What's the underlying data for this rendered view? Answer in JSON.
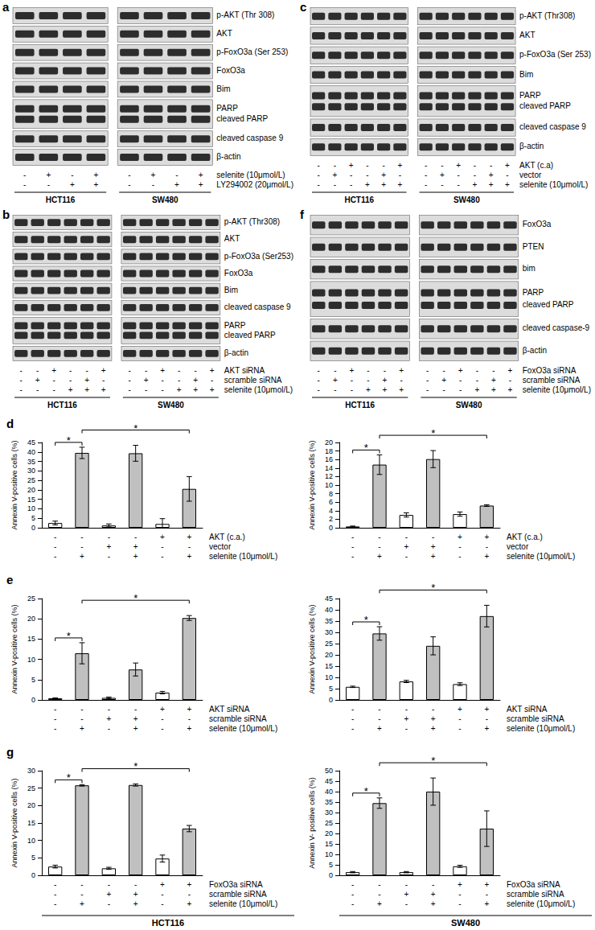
{
  "blots": [
    {
      "letter": "a",
      "cell_lines": [
        "HCT116",
        "SW480"
      ],
      "rows": [
        {
          "label": "p-AKT (Thr 308)"
        },
        {
          "label": "AKT"
        },
        {
          "label": "p-FoxO3a (Ser 253)"
        },
        {
          "label": "FoxO3a"
        },
        {
          "label": "Bim"
        },
        {
          "label": "PARP",
          "label2": "cleaved PARP"
        },
        {
          "label": "cleaved caspase 9"
        },
        {
          "label": "β-actin"
        }
      ],
      "treatments": [
        {
          "label": "selenite (10μmol/L)",
          "signs": [
            "-",
            "+",
            "-",
            "+"
          ]
        },
        {
          "label": "LY294002 (20μmol/L)",
          "signs": [
            "-",
            "-",
            "+",
            "+"
          ]
        }
      ]
    },
    {
      "letter": "b",
      "cell_lines": [
        "HCT116",
        "SW480"
      ],
      "rows": [
        {
          "label": "p-AKT (Thr308)"
        },
        {
          "label": "AKT"
        },
        {
          "label": "p-FoxO3a (Ser253)"
        },
        {
          "label": "FoxO3a"
        },
        {
          "label": "Bim"
        },
        {
          "label": "cleaved caspase 9"
        },
        {
          "label": "PARP",
          "label2": "cleaved PARP"
        },
        {
          "label": "β-actin"
        }
      ],
      "treatments": [
        {
          "label": "AKT siRNA",
          "signs": [
            "-",
            "-",
            "+",
            "-",
            "-",
            "+"
          ]
        },
        {
          "label": "scramble siRNA",
          "signs": [
            "-",
            "+",
            "-",
            "-",
            "+",
            "-"
          ]
        },
        {
          "label": "selenite (10μmol/L)",
          "signs": [
            "-",
            "-",
            "-",
            "+",
            "+",
            "+"
          ]
        }
      ]
    },
    {
      "letter": "c",
      "cell_lines": [
        "HCT116",
        "SW480"
      ],
      "rows": [
        {
          "label": "p-AKT (Thr308)"
        },
        {
          "label": "AKT"
        },
        {
          "label": "p-FoxO3a (Ser 253)"
        },
        {
          "label": "Bim"
        },
        {
          "label": "PARP",
          "label2": "cleaved PARP"
        },
        {
          "label": "cleaved caspase 9"
        },
        {
          "label": "β-actin"
        }
      ],
      "treatments": [
        {
          "label": "AKT (c.a)",
          "signs": [
            "-",
            "-",
            "+",
            "-",
            "-",
            "+"
          ]
        },
        {
          "label": "vector",
          "signs": [
            "-",
            "+",
            "-",
            "-",
            "+",
            "-"
          ]
        },
        {
          "label": "selenite (10μmol/L)",
          "signs": [
            "-",
            "-",
            "-",
            "+",
            "+",
            "+"
          ]
        }
      ]
    },
    {
      "letter": "f",
      "cell_lines": [
        "HCT116",
        "SW480"
      ],
      "rows": [
        {
          "label": "FoxO3a"
        },
        {
          "label": "PTEN"
        },
        {
          "label": "bim"
        },
        {
          "label": "PARP",
          "label2": "cleaved PARP"
        },
        {
          "label": "cleaved caspase-9"
        },
        {
          "label": "β-actin"
        }
      ],
      "treatments": [
        {
          "label": "FoxO3a siRNA",
          "signs": [
            "-",
            "-",
            "+",
            "-",
            "-",
            "+"
          ]
        },
        {
          "label": "scramble siRNA",
          "signs": [
            "-",
            "+",
            "-",
            "-",
            "+",
            "-"
          ]
        },
        {
          "label": "selenite (10μmol/L)",
          "signs": [
            "-",
            "-",
            "-",
            "+",
            "+",
            "+"
          ]
        }
      ]
    }
  ],
  "chart_data": [
    {
      "type": "bar",
      "title": "d",
      "ylabel": "Annexin V-positive cells (%)",
      "categories": [
        null,
        null,
        null,
        null,
        null,
        null
      ],
      "values": [
        2.5,
        39.5,
        1.2,
        39.3,
        2.0,
        20.5
      ],
      "errors": [
        1.0,
        3.0,
        0.8,
        4.2,
        2.8,
        6.5
      ],
      "colors": [
        "#ffffff",
        "#c0c0c0",
        "#ffffff",
        "#c0c0c0",
        "#ffffff",
        "#c0c0c0"
      ],
      "ylim": [
        0,
        45
      ],
      "yticks": [
        0,
        5,
        10,
        15,
        20,
        25,
        30,
        35,
        40,
        45
      ],
      "tick_labels": "y",
      "significance": [
        {
          "from": 0,
          "to": 1,
          "text": "*"
        },
        {
          "from": 1,
          "to": 5,
          "text": "*"
        }
      ],
      "treatments": [
        {
          "label": "AKT (c.a.)",
          "signs": [
            "-",
            "-",
            "-",
            "-",
            "+",
            "+"
          ]
        },
        {
          "label": "vector",
          "signs": [
            "-",
            "-",
            "+",
            "+",
            "-",
            "-"
          ]
        },
        {
          "label": "selenite (10μmol/L)",
          "signs": [
            "-",
            "+",
            "-",
            "+",
            "-",
            "+"
          ]
        }
      ]
    },
    {
      "type": "bar",
      "ylabel": "Annexin V-positive cells (%)",
      "categories": [
        null,
        null,
        null,
        null,
        null,
        null
      ],
      "values": [
        0.3,
        14.8,
        3.0,
        16.1,
        3.2,
        5.2
      ],
      "errors": [
        0.1,
        2.3,
        0.5,
        2.0,
        0.5,
        0.2
      ],
      "colors": [
        "#ffffff",
        "#c0c0c0",
        "#ffffff",
        "#c0c0c0",
        "#ffffff",
        "#c0c0c0"
      ],
      "ylim": [
        0,
        20
      ],
      "yticks": [
        0,
        2,
        4,
        6,
        8,
        10,
        12,
        14,
        16,
        18,
        20
      ],
      "tick_labels": "y",
      "significance": [
        {
          "from": 0,
          "to": 1,
          "text": "*"
        },
        {
          "from": 1,
          "to": 5,
          "text": "*"
        }
      ],
      "treatments": [
        {
          "label": "AKT (c.a.)",
          "signs": [
            "-",
            "-",
            "-",
            "-",
            "+",
            "+"
          ]
        },
        {
          "label": "vector",
          "signs": [
            "-",
            "-",
            "+",
            "+",
            "-",
            "-"
          ]
        },
        {
          "label": "selenite (10μmol/L)",
          "signs": [
            "-",
            "+",
            "-",
            "+",
            "-",
            "+"
          ]
        }
      ]
    },
    {
      "type": "bar",
      "title": "e",
      "ylabel": "Annexin V-positive cells (%)",
      "categories": [
        null,
        null,
        null,
        null,
        null,
        null
      ],
      "values": [
        0.4,
        11.5,
        0.5,
        7.5,
        1.8,
        20.2
      ],
      "errors": [
        0.1,
        2.6,
        0.2,
        1.6,
        0.3,
        0.6
      ],
      "colors": [
        "#ffffff",
        "#c0c0c0",
        "#ffffff",
        "#c0c0c0",
        "#ffffff",
        "#c0c0c0"
      ],
      "ylim": [
        0,
        25
      ],
      "yticks": [
        0,
        5,
        10,
        15,
        20,
        25
      ],
      "tick_labels": "y",
      "significance": [
        {
          "from": 0,
          "to": 1,
          "text": "*"
        },
        {
          "from": 1,
          "to": 5,
          "text": "*"
        }
      ],
      "treatments": [
        {
          "label": "AKT siRNA",
          "signs": [
            "-",
            "-",
            "-",
            "-",
            "+",
            "+"
          ]
        },
        {
          "label": "scramble siRNA",
          "signs": [
            "-",
            "-",
            "+",
            "+",
            "-",
            "-"
          ]
        },
        {
          "label": "selenite (10μmol/L)",
          "signs": [
            "-",
            "+",
            "-",
            "+",
            "-",
            "+"
          ]
        }
      ]
    },
    {
      "type": "bar",
      "ylabel": "Annexin V-positive cells (%)",
      "categories": [
        null,
        null,
        null,
        null,
        null,
        null
      ],
      "values": [
        5.8,
        29.5,
        8.2,
        24.0,
        7.0,
        37.2
      ],
      "errors": [
        0.3,
        3.0,
        0.5,
        4.0,
        0.6,
        4.8
      ],
      "colors": [
        "#ffffff",
        "#c0c0c0",
        "#ffffff",
        "#c0c0c0",
        "#ffffff",
        "#c0c0c0"
      ],
      "ylim": [
        0,
        45
      ],
      "yticks": [
        0,
        5,
        10,
        15,
        20,
        25,
        30,
        35,
        40,
        45
      ],
      "tick_labels": "y",
      "significance": [
        {
          "from": 0,
          "to": 1,
          "text": "*"
        },
        {
          "from": 1,
          "to": 5,
          "text": "*"
        }
      ],
      "treatments": [
        {
          "label": "AKT siRNA",
          "signs": [
            "-",
            "-",
            "-",
            "-",
            "+",
            "+"
          ]
        },
        {
          "label": "scramble siRNA",
          "signs": [
            "-",
            "-",
            "+",
            "+",
            "-",
            "-"
          ]
        },
        {
          "label": "selenite (10μmol/L)",
          "signs": [
            "-",
            "+",
            "-",
            "+",
            "-",
            "+"
          ]
        }
      ]
    },
    {
      "type": "bar",
      "title": "g",
      "ylabel": "Annexin V-positive cells (%)",
      "xlabel": "HCT116",
      "categories": [
        null,
        null,
        null,
        null,
        null,
        null
      ],
      "values": [
        2.5,
        25.8,
        2.0,
        25.9,
        4.8,
        13.4
      ],
      "errors": [
        0.4,
        0.2,
        0.3,
        0.3,
        1.0,
        0.9
      ],
      "colors": [
        "#ffffff",
        "#c0c0c0",
        "#ffffff",
        "#c0c0c0",
        "#ffffff",
        "#c0c0c0"
      ],
      "ylim": [
        0,
        30
      ],
      "yticks": [
        0,
        5,
        10,
        15,
        20,
        25,
        30
      ],
      "tick_labels": "y",
      "significance": [
        {
          "from": 0,
          "to": 1,
          "text": "*"
        },
        {
          "from": 1,
          "to": 5,
          "text": "*"
        }
      ],
      "treatments": [
        {
          "label": "FoxO3a siRNA",
          "signs": [
            "-",
            "-",
            "-",
            "-",
            "+",
            "+"
          ]
        },
        {
          "label": "scramble siRNA",
          "signs": [
            "-",
            "-",
            "+",
            "+",
            "-",
            "-"
          ]
        },
        {
          "label": "selenite (10μmol/L)",
          "signs": [
            "-",
            "+",
            "-",
            "+",
            "-",
            "+"
          ]
        }
      ]
    },
    {
      "type": "bar",
      "ylabel": "Annexin V- positive cells (%)",
      "xlabel": "SW480",
      "categories": [
        null,
        null,
        null,
        null,
        null,
        null
      ],
      "values": [
        1.5,
        34.5,
        1.5,
        40.0,
        4.3,
        22.3
      ],
      "errors": [
        0.3,
        2.5,
        0.3,
        6.5,
        0.5,
        8.5
      ],
      "colors": [
        "#ffffff",
        "#c0c0c0",
        "#ffffff",
        "#c0c0c0",
        "#ffffff",
        "#c0c0c0"
      ],
      "ylim": [
        0,
        50
      ],
      "yticks": [
        0,
        5,
        10,
        15,
        20,
        25,
        30,
        35,
        40,
        45,
        50
      ],
      "tick_labels": "y",
      "significance": [
        {
          "from": 0,
          "to": 1,
          "text": "*"
        },
        {
          "from": 1,
          "to": 5,
          "text": "*"
        }
      ],
      "treatments": [
        {
          "label": "FoxO3a siRNA",
          "signs": [
            "-",
            "-",
            "-",
            "-",
            "+",
            "+"
          ]
        },
        {
          "label": "scramble siRNA",
          "signs": [
            "-",
            "-",
            "+",
            "+",
            "-",
            "-"
          ]
        },
        {
          "label": "selenite (10μmol/L)",
          "signs": [
            "-",
            "+",
            "-",
            "+",
            "-",
            "+"
          ]
        }
      ]
    }
  ]
}
